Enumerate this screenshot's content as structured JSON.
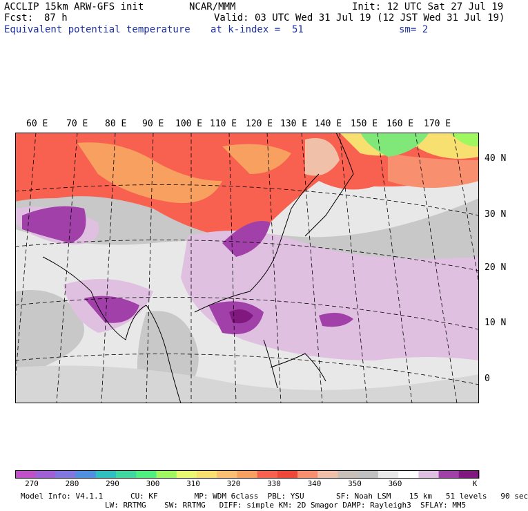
{
  "header": {
    "title_left": "ACCLIP 15km ARW-GFS init",
    "center_org": "NCAR/MMM",
    "init_time": "Init: 12 UTC Sat 27 Jul 19",
    "fcst_label": "Fcst:",
    "fcst_value": "87 h",
    "valid_time": "Valid: 03 UTC Wed 31 Jul 19 (12 JST Wed 31 Jul 19)",
    "field_name": "Equivalent potential temperature",
    "level": "at k-index =  51",
    "smoothing": "sm= 2"
  },
  "map": {
    "longitude_labels": [
      "60 E",
      "70 E",
      "80 E",
      "90 E",
      "100 E",
      "110 E",
      "120 E",
      "130 E",
      "140 E",
      "150 E",
      "160 E",
      "170 E"
    ],
    "latitude_labels": [
      "40 N",
      "30 N",
      "20 N",
      "10 N",
      "0"
    ]
  },
  "colorbar": {
    "colors": [
      "#c050c8",
      "#a060d8",
      "#8078e0",
      "#5090e0",
      "#30c0c0",
      "#40d8a0",
      "#50f080",
      "#a0f860",
      "#e8f870",
      "#f8e070",
      "#f8c070",
      "#f8a060",
      "#f86050",
      "#f04838",
      "#f89070",
      "#f0c0a8",
      "#c8c0b8",
      "#c0c0c0",
      "#e8e8e8",
      "#ffffff",
      "#e0c0e0",
      "#a040a8",
      "#801880"
    ],
    "tick_labels": [
      "270",
      "280",
      "290",
      "300",
      "310",
      "320",
      "330",
      "340",
      "350",
      "360"
    ],
    "units": "K"
  },
  "footer": {
    "line1": "Model Info: V4.1.1      CU: KF        MP: WDM 6class  PBL: YSU       SF: Noah LSM    15 km   51 levels   90 sec",
    "line2": "LW: RRTMG    SW: RRTMG   DIFF: simple KM: 2D Smagor DAMP: Rayleigh3  SFLAY: MM5"
  }
}
